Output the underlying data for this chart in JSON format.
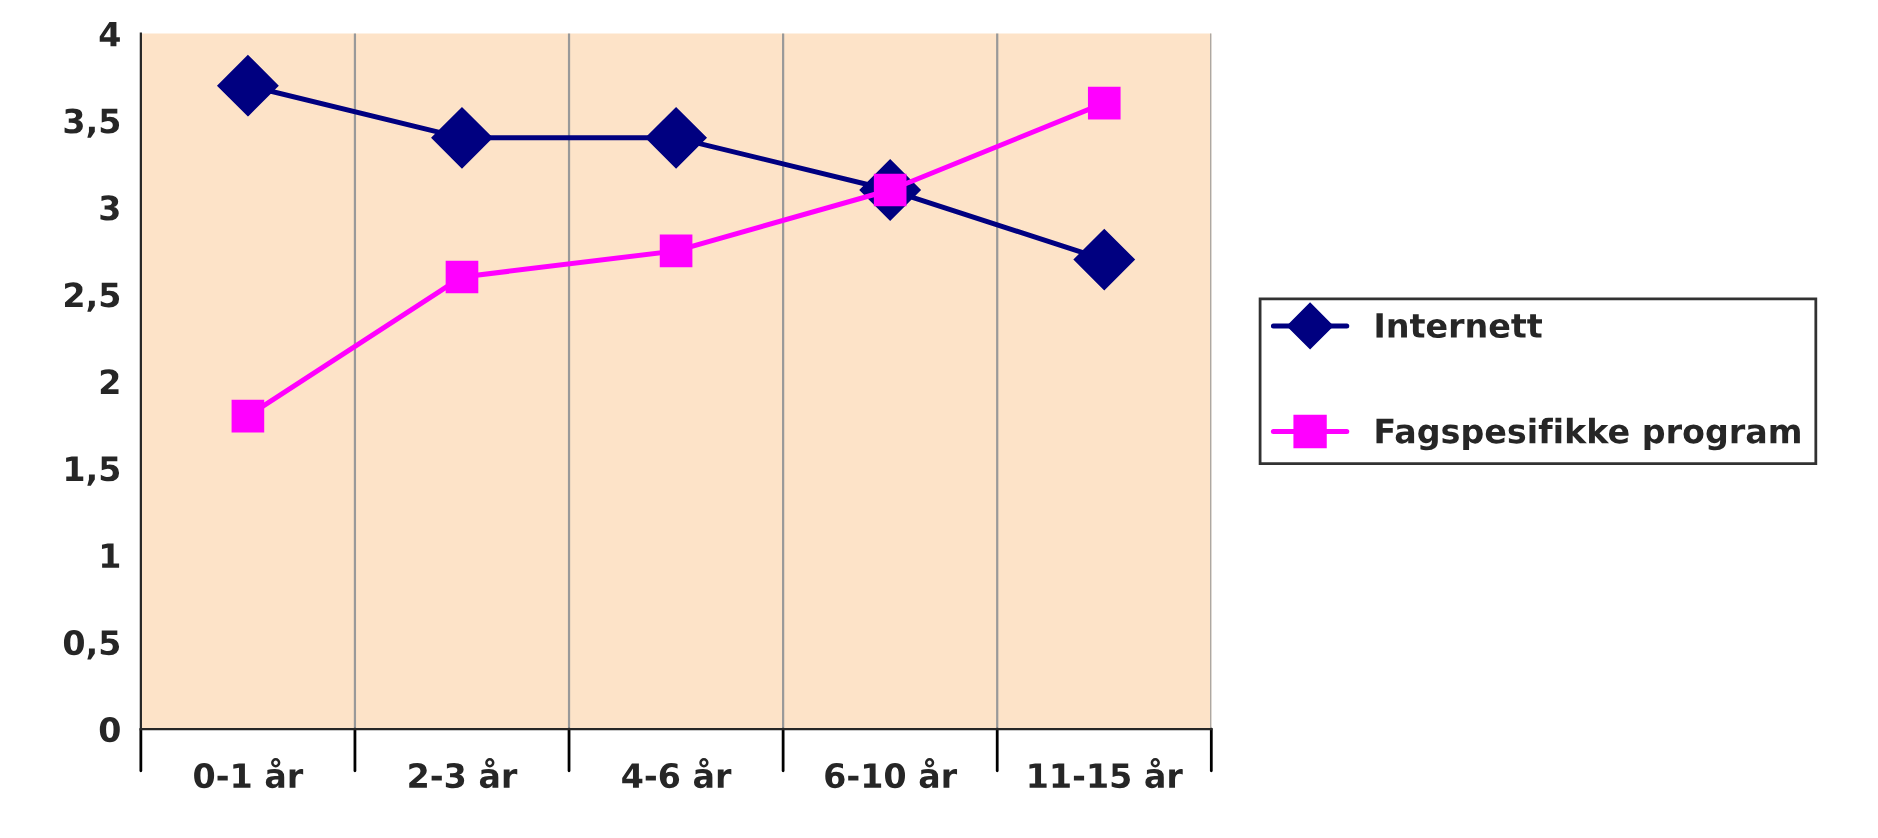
{
  "chart_data": {
    "type": "line",
    "categories": [
      "0-1 år",
      "2-3 år",
      "4-6 år",
      "6-10 år",
      "11-15 år"
    ],
    "series": [
      {
        "name": "Internett",
        "color": "#000080",
        "marker": "diamond",
        "values": [
          3.7,
          3.4,
          3.4,
          3.1,
          2.7
        ]
      },
      {
        "name": "Fagspesifikke program",
        "color": "#ff00ff",
        "marker": "square",
        "values": [
          1.8,
          2.6,
          2.75,
          3.1,
          3.6
        ]
      }
    ],
    "ylim": [
      0,
      4
    ],
    "yticks": [
      0,
      {
        "value": 0.5,
        "label": "0,5"
      },
      1,
      {
        "value": 1.5,
        "label": "1,5"
      },
      2,
      {
        "value": 2.5,
        "label": "2,5"
      },
      3,
      {
        "value": 3.5,
        "label": "3,5"
      },
      4
    ],
    "grid": "x",
    "legend": "right",
    "line_style": "solid"
  }
}
